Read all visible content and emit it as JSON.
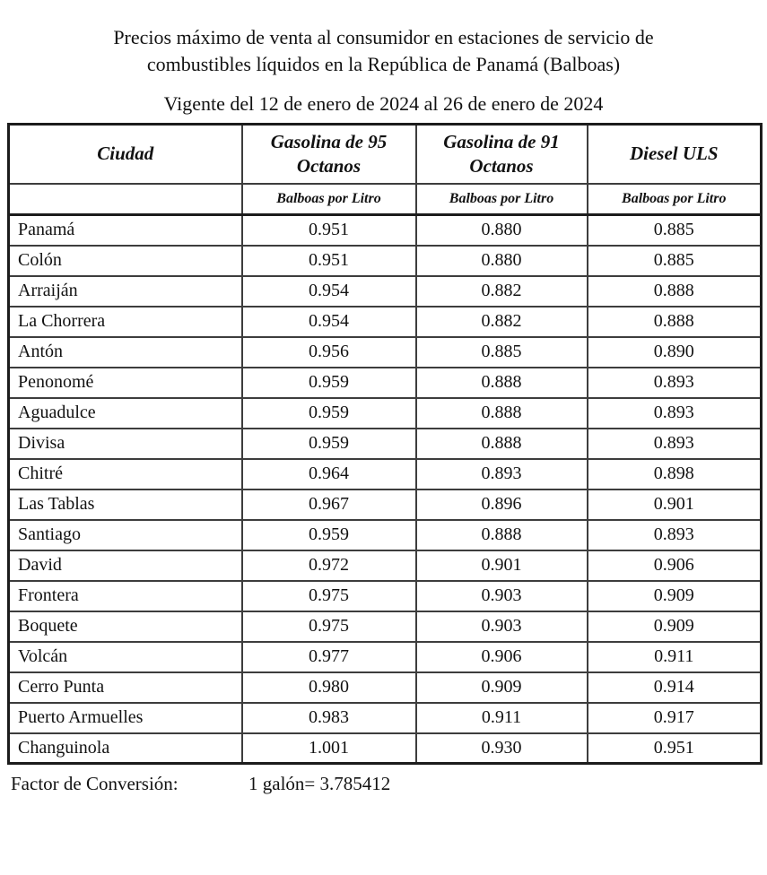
{
  "page": {
    "title_lines": [
      "Precios máximo de venta al consumidor en estaciones de servicio de",
      "combustibles líquidos en la República de Panamá (Balboas)"
    ],
    "subtitle": "Vigente del 12 de enero de 2024 al 26 de enero de 2024"
  },
  "table": {
    "columns": [
      "Ciudad",
      "Gasolina de 95 Octanos",
      "Gasolina de 91 Octanos",
      "Diesel ULS"
    ],
    "unit_label": "Balboas por Litro",
    "rows": [
      {
        "city": "Panamá",
        "gas95": "0.951",
        "gas91": "0.880",
        "diesel": "0.885"
      },
      {
        "city": "Colón",
        "gas95": "0.951",
        "gas91": "0.880",
        "diesel": "0.885"
      },
      {
        "city": "Arraiján",
        "gas95": "0.954",
        "gas91": "0.882",
        "diesel": "0.888"
      },
      {
        "city": "La Chorrera",
        "gas95": "0.954",
        "gas91": "0.882",
        "diesel": "0.888"
      },
      {
        "city": "Antón",
        "gas95": "0.956",
        "gas91": "0.885",
        "diesel": "0.890"
      },
      {
        "city": "Penonomé",
        "gas95": "0.959",
        "gas91": "0.888",
        "diesel": "0.893"
      },
      {
        "city": "Aguadulce",
        "gas95": "0.959",
        "gas91": "0.888",
        "diesel": "0.893"
      },
      {
        "city": "Divisa",
        "gas95": "0.959",
        "gas91": "0.888",
        "diesel": "0.893"
      },
      {
        "city": "Chitré",
        "gas95": "0.964",
        "gas91": "0.893",
        "diesel": "0.898"
      },
      {
        "city": "Las Tablas",
        "gas95": "0.967",
        "gas91": "0.896",
        "diesel": "0.901"
      },
      {
        "city": "Santiago",
        "gas95": "0.959",
        "gas91": "0.888",
        "diesel": "0.893"
      },
      {
        "city": "David",
        "gas95": "0.972",
        "gas91": "0.901",
        "diesel": "0.906"
      },
      {
        "city": "Frontera",
        "gas95": "0.975",
        "gas91": "0.903",
        "diesel": "0.909"
      },
      {
        "city": "Boquete",
        "gas95": "0.975",
        "gas91": "0.903",
        "diesel": "0.909"
      },
      {
        "city": "Volcán",
        "gas95": "0.977",
        "gas91": "0.906",
        "diesel": "0.911"
      },
      {
        "city": "Cerro Punta",
        "gas95": "0.980",
        "gas91": "0.909",
        "diesel": "0.914"
      },
      {
        "city": "Puerto Armuelles",
        "gas95": "0.983",
        "gas91": "0.911",
        "diesel": "0.917"
      },
      {
        "city": "Changuinola",
        "gas95": "1.001",
        "gas91": "0.930",
        "diesel": "0.951"
      }
    ]
  },
  "footer": {
    "label": "Factor de Conversión:",
    "value": "1 galón= 3.785412"
  },
  "colors": {
    "background": "#ffffff",
    "text": "#121212",
    "border_outer": "#1c1c1c",
    "border_inner": "#3d3d3d"
  }
}
